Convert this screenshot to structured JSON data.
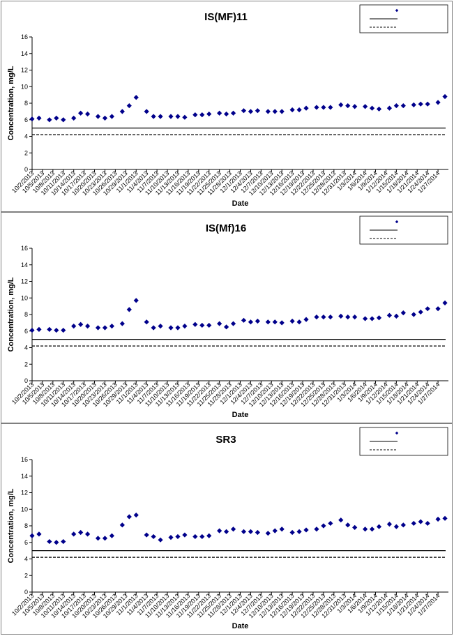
{
  "colors": {
    "marker": "#00008b",
    "limit_line": "#000000",
    "axis": "#000000",
    "border": "#7f7f7f"
  },
  "chart_data": [
    {
      "type": "scatter",
      "title": "IS(MF)11",
      "xlabel": "Date",
      "ylabel": "Concentration, mg/L",
      "ylim": [
        0,
        16
      ],
      "yticks": [
        0,
        2,
        4,
        6,
        8,
        10,
        12,
        14,
        16
      ],
      "xlim": [
        "2013-10-02",
        "2014-01-30"
      ],
      "xtick_labels": [
        "10/2/2013",
        "10/5/2013",
        "10/8/2013",
        "10/11/2013",
        "10/14/2013",
        "10/17/2013",
        "10/20/2013",
        "10/23/2013",
        "10/26/2013",
        "10/29/2013",
        "11/1/2013",
        "11/4/2013",
        "11/7/2013",
        "11/10/2013",
        "11/13/2013",
        "11/16/2013",
        "11/19/2013",
        "11/22/2013",
        "11/25/2013",
        "11/28/2013",
        "12/1/2013",
        "12/4/2013",
        "12/7/2013",
        "12/10/2013",
        "12/13/2013",
        "12/16/2013",
        "12/19/2013",
        "12/22/2013",
        "12/25/2013",
        "12/28/2013",
        "12/31/2013",
        "1/3/2014",
        "1/6/2014",
        "1/9/2014",
        "1/12/2014",
        "1/15/2014",
        "1/18/2014",
        "1/21/2014",
        "1/24/2014",
        "1/27/2014"
      ],
      "legend": {
        "position": "top-right",
        "entries": [
          ""
        ]
      },
      "reference_lines": [
        {
          "style": "solid",
          "y": 5.0
        },
        {
          "style": "dashed",
          "y": 4.2
        }
      ],
      "series": [
        {
          "x": [
            "2013-10-02",
            "2013-10-04",
            "2013-10-07",
            "2013-10-09",
            "2013-10-11",
            "2013-10-14",
            "2013-10-16",
            "2013-10-18",
            "2013-10-21",
            "2013-10-23",
            "2013-10-25",
            "2013-10-28",
            "2013-10-30",
            "2013-11-01",
            "2013-11-04",
            "2013-11-06",
            "2013-11-08",
            "2013-11-11",
            "2013-11-13",
            "2013-11-15",
            "2013-11-18",
            "2013-11-20",
            "2013-11-22",
            "2013-11-25",
            "2013-11-27",
            "2013-11-29",
            "2013-12-02",
            "2013-12-04",
            "2013-12-06",
            "2013-12-09",
            "2013-12-11",
            "2013-12-13",
            "2013-12-16",
            "2013-12-18",
            "2013-12-20",
            "2013-12-23",
            "2013-12-25",
            "2013-12-27",
            "2013-12-30",
            "2014-01-01",
            "2014-01-03",
            "2014-01-06",
            "2014-01-08",
            "2014-01-10",
            "2014-01-13",
            "2014-01-15",
            "2014-01-17",
            "2014-01-20",
            "2014-01-22",
            "2014-01-24",
            "2014-01-27",
            "2014-01-29"
          ],
          "y": [
            6.1,
            6.2,
            6.0,
            6.2,
            6.0,
            6.2,
            6.8,
            6.7,
            6.4,
            6.2,
            6.4,
            7.0,
            7.7,
            8.7,
            7.0,
            6.4,
            6.4,
            6.4,
            6.4,
            6.3,
            6.6,
            6.6,
            6.7,
            6.8,
            6.7,
            6.8,
            7.1,
            7.0,
            7.1,
            7.0,
            7.0,
            7.0,
            7.2,
            7.2,
            7.4,
            7.5,
            7.5,
            7.5,
            7.8,
            7.7,
            7.6,
            7.6,
            7.4,
            7.3,
            7.4,
            7.7,
            7.7,
            7.8,
            7.9,
            7.9,
            8.1,
            8.8
          ]
        }
      ]
    },
    {
      "type": "scatter",
      "title": "IS(Mf)16",
      "xlabel": "Date",
      "ylabel": "Concentration, mg/L",
      "ylim": [
        0,
        16
      ],
      "yticks": [
        0,
        2,
        4,
        6,
        8,
        10,
        12,
        14,
        16
      ],
      "xlim": [
        "2013-10-02",
        "2014-01-30"
      ],
      "xtick_labels": [
        "10/2/2013",
        "10/5/2013",
        "10/8/2013",
        "10/11/2013",
        "10/14/2013",
        "10/17/2013",
        "10/20/2013",
        "10/23/2013",
        "10/26/2013",
        "10/29/2013",
        "11/1/2013",
        "11/4/2013",
        "11/7/2013",
        "11/10/2013",
        "11/13/2013",
        "11/16/2013",
        "11/19/2013",
        "11/22/2013",
        "11/25/2013",
        "11/28/2013",
        "12/1/2013",
        "12/4/2013",
        "12/7/2013",
        "12/10/2013",
        "12/13/2013",
        "12/16/2013",
        "12/19/2013",
        "12/22/2013",
        "12/25/2013",
        "12/28/2013",
        "12/31/2013",
        "1/3/2014",
        "1/6/2014",
        "1/9/2014",
        "1/12/2014",
        "1/15/2014",
        "1/18/2014",
        "1/21/2014",
        "1/24/2014",
        "1/27/2014"
      ],
      "legend": {
        "position": "top-right",
        "entries": [
          ""
        ]
      },
      "reference_lines": [
        {
          "style": "solid",
          "y": 5.0
        },
        {
          "style": "dashed",
          "y": 4.2
        }
      ],
      "series": [
        {
          "x": [
            "2013-10-02",
            "2013-10-04",
            "2013-10-07",
            "2013-10-09",
            "2013-10-11",
            "2013-10-14",
            "2013-10-16",
            "2013-10-18",
            "2013-10-21",
            "2013-10-23",
            "2013-10-25",
            "2013-10-28",
            "2013-10-30",
            "2013-11-01",
            "2013-11-04",
            "2013-11-06",
            "2013-11-08",
            "2013-11-11",
            "2013-11-13",
            "2013-11-15",
            "2013-11-18",
            "2013-11-20",
            "2013-11-22",
            "2013-11-25",
            "2013-11-27",
            "2013-11-29",
            "2013-12-02",
            "2013-12-04",
            "2013-12-06",
            "2013-12-09",
            "2013-12-11",
            "2013-12-13",
            "2013-12-16",
            "2013-12-18",
            "2013-12-20",
            "2013-12-23",
            "2013-12-25",
            "2013-12-27",
            "2013-12-30",
            "2014-01-01",
            "2014-01-03",
            "2014-01-06",
            "2014-01-08",
            "2014-01-10",
            "2014-01-13",
            "2014-01-15",
            "2014-01-17",
            "2014-01-20",
            "2014-01-22",
            "2014-01-24",
            "2014-01-27",
            "2014-01-29"
          ],
          "y": [
            6.1,
            6.2,
            6.2,
            6.1,
            6.1,
            6.6,
            6.8,
            6.6,
            6.4,
            6.4,
            6.6,
            6.9,
            8.6,
            9.7,
            7.1,
            6.4,
            6.6,
            6.4,
            6.4,
            6.6,
            6.8,
            6.7,
            6.7,
            6.9,
            6.5,
            6.9,
            7.3,
            7.1,
            7.2,
            7.1,
            7.1,
            7.0,
            7.2,
            7.1,
            7.4,
            7.7,
            7.7,
            7.7,
            7.8,
            7.7,
            7.7,
            7.5,
            7.5,
            7.6,
            7.9,
            7.8,
            8.2,
            8.0,
            8.3,
            8.7,
            8.7,
            9.4
          ]
        }
      ]
    },
    {
      "type": "scatter",
      "title": "SR3",
      "xlabel": "Date",
      "ylabel": "Concentration, mg/L",
      "ylim": [
        0,
        16
      ],
      "yticks": [
        0,
        2,
        4,
        6,
        8,
        10,
        12,
        14,
        16
      ],
      "xlim": [
        "2013-10-02",
        "2014-01-30"
      ],
      "xtick_labels": [
        "10/2/2013",
        "10/5/2013",
        "10/8/2013",
        "10/11/2013",
        "10/14/2013",
        "10/17/2013",
        "10/20/2013",
        "10/23/2013",
        "10/26/2013",
        "10/29/2013",
        "11/1/2013",
        "11/4/2013",
        "11/7/2013",
        "11/10/2013",
        "11/13/2013",
        "11/16/2013",
        "11/19/2013",
        "11/22/2013",
        "11/25/2013",
        "11/28/2013",
        "12/1/2013",
        "12/4/2013",
        "12/7/2013",
        "12/10/2013",
        "12/13/2013",
        "12/16/2013",
        "12/19/2013",
        "12/22/2013",
        "12/25/2013",
        "12/28/2013",
        "12/31/2013",
        "1/3/2014",
        "1/6/2014",
        "1/9/2014",
        "1/12/2014",
        "1/15/2014",
        "1/18/2014",
        "1/21/2014",
        "1/24/2014",
        "1/27/2014"
      ],
      "legend": {
        "position": "top-right",
        "entries": [
          ""
        ]
      },
      "reference_lines": [
        {
          "style": "solid",
          "y": 5.0
        },
        {
          "style": "dashed",
          "y": 4.2
        }
      ],
      "series": [
        {
          "x": [
            "2013-10-02",
            "2013-10-04",
            "2013-10-07",
            "2013-10-09",
            "2013-10-11",
            "2013-10-14",
            "2013-10-16",
            "2013-10-18",
            "2013-10-21",
            "2013-10-23",
            "2013-10-25",
            "2013-10-28",
            "2013-10-30",
            "2013-11-01",
            "2013-11-04",
            "2013-11-06",
            "2013-11-08",
            "2013-11-11",
            "2013-11-13",
            "2013-11-15",
            "2013-11-18",
            "2013-11-20",
            "2013-11-22",
            "2013-11-25",
            "2013-11-27",
            "2013-11-29",
            "2013-12-02",
            "2013-12-04",
            "2013-12-06",
            "2013-12-09",
            "2013-12-11",
            "2013-12-13",
            "2013-12-16",
            "2013-12-18",
            "2013-12-20",
            "2013-12-23",
            "2013-12-25",
            "2013-12-27",
            "2013-12-30",
            "2014-01-01",
            "2014-01-03",
            "2014-01-06",
            "2014-01-08",
            "2014-01-10",
            "2014-01-13",
            "2014-01-15",
            "2014-01-17",
            "2014-01-20",
            "2014-01-22",
            "2014-01-24",
            "2014-01-27",
            "2014-01-29"
          ],
          "y": [
            6.8,
            7.0,
            6.1,
            6.0,
            6.1,
            7.0,
            7.2,
            7.0,
            6.5,
            6.5,
            6.8,
            8.1,
            9.1,
            9.3,
            6.9,
            6.7,
            6.3,
            6.6,
            6.7,
            6.9,
            6.7,
            6.7,
            6.8,
            7.4,
            7.3,
            7.6,
            7.3,
            7.3,
            7.2,
            7.1,
            7.4,
            7.6,
            7.2,
            7.3,
            7.5,
            7.6,
            8.0,
            8.3,
            8.7,
            8.1,
            7.8,
            7.6,
            7.6,
            7.9,
            8.2,
            7.9,
            8.1,
            8.3,
            8.5,
            8.3,
            8.8,
            8.9
          ]
        }
      ]
    }
  ]
}
